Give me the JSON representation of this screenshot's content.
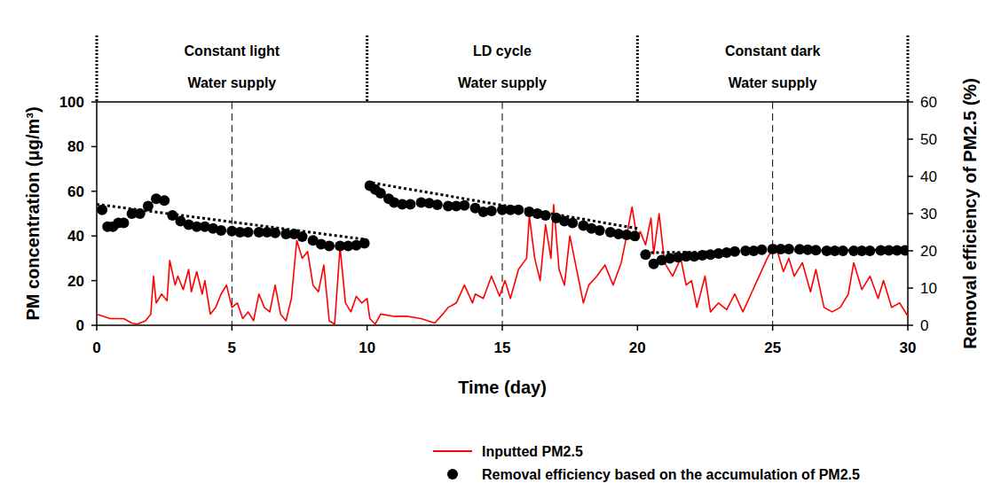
{
  "chart_data": {
    "type": "line",
    "xlabel": "Time (day)",
    "ylabel": "PM concentration (μg/m³)",
    "y2label": "Removal efficiency of PM2.5 (%)",
    "xlim": [
      0,
      30
    ],
    "xticks": [
      0,
      5,
      10,
      15,
      20,
      25,
      30
    ],
    "ylim": [
      0,
      100
    ],
    "yticks": [
      0,
      20,
      40,
      60,
      80,
      100
    ],
    "y2lim": [
      0,
      60
    ],
    "y2ticks": [
      0,
      10,
      20,
      30,
      40,
      50,
      60
    ],
    "legend": "bottom",
    "grid": false,
    "sections": [
      {
        "start": 0,
        "end": 10,
        "label": "Constant light",
        "sublabel": "Water supply"
      },
      {
        "start": 10,
        "end": 20,
        "label": "LD cycle",
        "sublabel": "Water supply"
      },
      {
        "start": 20,
        "end": 30,
        "label": "Constant dark",
        "sublabel": "Water supply"
      }
    ],
    "vlines": [
      5,
      15,
      25
    ],
    "series": [
      {
        "name": "Inputted PM2.5",
        "type": "line",
        "color": "#ff0000",
        "line_style": "solid",
        "x": [
          0,
          0.5,
          1,
          1.3,
          1.5,
          1.8,
          2,
          2.1,
          2.2,
          2.4,
          2.6,
          2.7,
          2.9,
          3,
          3.2,
          3.4,
          3.5,
          3.7,
          3.9,
          4,
          4.2,
          4.4,
          4.6,
          4.8,
          5,
          5.2,
          5.4,
          5.6,
          5.8,
          6,
          6.2,
          6.4,
          6.6,
          6.8,
          7,
          7.2,
          7.4,
          7.6,
          7.8,
          8,
          8.2,
          8.4,
          8.6,
          8.8,
          9,
          9.2,
          9.4,
          9.6,
          9.8,
          10,
          10.1,
          10.3,
          10.5,
          11,
          11.5,
          12,
          12.5,
          12.8,
          13,
          13.3,
          13.6,
          13.9,
          14,
          14.3,
          14.6,
          14.9,
          15.1,
          15.3,
          15.6,
          15.9,
          16,
          16.2,
          16.4,
          16.6,
          16.8,
          16.9,
          17.1,
          17.3,
          17.5,
          17.8,
          18,
          18.2,
          18.5,
          18.8,
          19.1,
          19.4,
          19.6,
          19.8,
          20,
          20.1,
          20.3,
          20.5,
          20.6,
          20.8,
          21,
          21.3,
          21.6,
          21.8,
          22,
          22.2,
          22.5,
          22.7,
          23,
          23.3,
          23.6,
          23.9,
          24.2,
          24.5,
          24.8,
          25.1,
          25.4,
          25.6,
          25.8,
          26.1,
          26.4,
          26.6,
          26.9,
          27.2,
          27.5,
          27.8,
          28,
          28.3,
          28.6,
          28.9,
          29.1,
          29.4,
          29.7,
          30
        ],
        "values": [
          5,
          3,
          3,
          1,
          0.5,
          2,
          5,
          22,
          10,
          14,
          11,
          29,
          18,
          22,
          16,
          25,
          15,
          24,
          14,
          20,
          5,
          8,
          14,
          18,
          8,
          10,
          3,
          6,
          2,
          14,
          8,
          6,
          18,
          5,
          2,
          12,
          38,
          30,
          33,
          18,
          15,
          27,
          2,
          0.5,
          35,
          10,
          6,
          13,
          10,
          12,
          3,
          0.5,
          5,
          4,
          4,
          3,
          1,
          5,
          8,
          10,
          18,
          10,
          14,
          12,
          22,
          13,
          20,
          12,
          25,
          30,
          49,
          30,
          20,
          45,
          30,
          54,
          25,
          18,
          40,
          22,
          10,
          18,
          22,
          27,
          18,
          28,
          40,
          53,
          38,
          42,
          36,
          48,
          32,
          50,
          28,
          22,
          30,
          18,
          20,
          8,
          22,
          6,
          10,
          7,
          14,
          6,
          14,
          22,
          30,
          36,
          24,
          30,
          22,
          28,
          15,
          25,
          8,
          6,
          8,
          14,
          28,
          16,
          22,
          12,
          20,
          8,
          10,
          4
        ]
      },
      {
        "name": "Removal efficiency based on the accumulation of PM2.5",
        "type": "scatter",
        "color": "#000000",
        "marker": "circle",
        "axis": "y2",
        "x": [
          0.2,
          0.4,
          0.6,
          0.8,
          1,
          1.3,
          1.6,
          1.9,
          2.2,
          2.5,
          2.8,
          3.1,
          3.4,
          3.7,
          4,
          4.3,
          4.6,
          5,
          5.3,
          5.6,
          6,
          6.3,
          6.6,
          7,
          7.3,
          7.6,
          8,
          8.3,
          8.6,
          9,
          9.3,
          9.6,
          9.9,
          10.1,
          10.3,
          10.5,
          10.8,
          11,
          11.3,
          11.6,
          12,
          12.3,
          12.6,
          13,
          13.3,
          13.6,
          14,
          14.3,
          14.6,
          15,
          15.3,
          15.6,
          16,
          16.3,
          16.6,
          17,
          17.3,
          17.6,
          18,
          18.3,
          18.6,
          19,
          19.3,
          19.6,
          19.9,
          20.3,
          20.6,
          20.9,
          21.2,
          21.5,
          21.8,
          22.1,
          22.4,
          22.7,
          23,
          23.3,
          23.6,
          24,
          24.3,
          24.6,
          25,
          25.3,
          25.6,
          26,
          26.3,
          26.6,
          27,
          27.3,
          27.6,
          28,
          28.3,
          28.6,
          29,
          29.3,
          29.6,
          29.9
        ],
        "values": [
          31,
          26.5,
          26.5,
          27.5,
          27.5,
          30,
          30,
          32,
          34,
          33.5,
          29.5,
          28,
          27,
          26.5,
          26.5,
          26,
          25.5,
          25.3,
          25,
          25,
          25,
          25,
          24.8,
          24.5,
          24.5,
          23.8,
          22.8,
          21.8,
          21.3,
          21.3,
          21.3,
          21.5,
          22,
          37.5,
          36.5,
          35.5,
          34,
          33,
          32.5,
          32.5,
          33,
          32.8,
          32.4,
          32,
          32,
          32.2,
          31.5,
          30.5,
          30.7,
          31,
          31,
          31,
          30.5,
          30,
          29.5,
          28.8,
          28,
          27.5,
          26.8,
          26,
          25.5,
          25,
          24.5,
          24.3,
          24,
          19,
          16.5,
          17.5,
          18,
          18.3,
          18.5,
          18.5,
          18.8,
          19,
          19.3,
          19.5,
          19.8,
          20,
          20,
          20.3,
          20.5,
          20.5,
          20.5,
          20.4,
          20.3,
          20.2,
          20,
          20,
          20,
          20,
          20,
          20,
          20.1,
          20.1,
          20.1,
          20.1
        ]
      },
      {
        "type": "line",
        "color": "#000000",
        "line_style": "dotted",
        "axis": "y2",
        "x": [
          0,
          10
        ],
        "values": [
          32.5,
          23
        ]
      },
      {
        "type": "line",
        "color": "#000000",
        "line_style": "dotted",
        "axis": "y2",
        "x": [
          10,
          20
        ],
        "values": [
          38.5,
          26
        ]
      },
      {
        "type": "line",
        "color": "#000000",
        "line_style": "dotted",
        "axis": "y2",
        "x": [
          20.3,
          29.9
        ],
        "values": [
          19.5,
          20.3
        ]
      }
    ]
  }
}
